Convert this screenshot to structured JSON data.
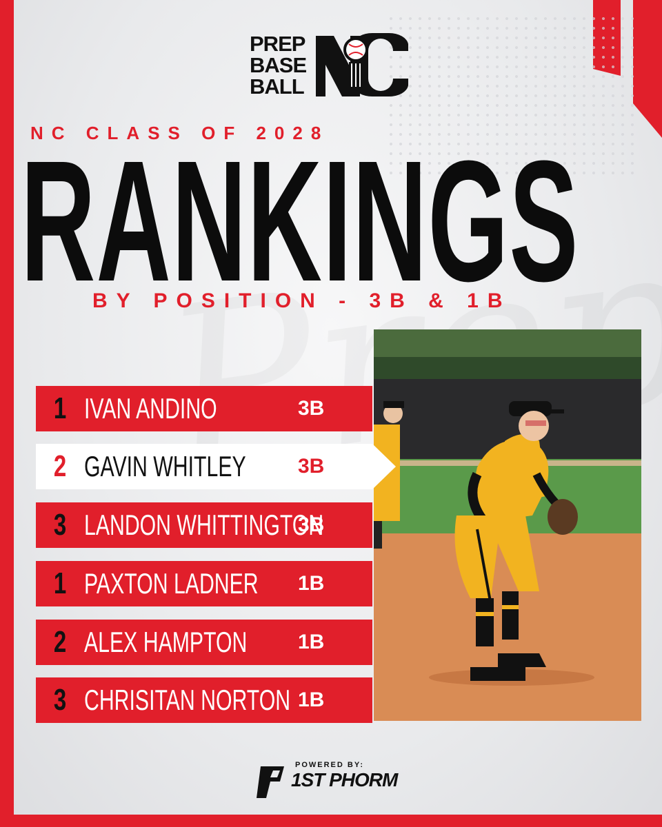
{
  "logo": {
    "words": [
      "PREP",
      "BASE",
      "BALL"
    ],
    "state": "NC"
  },
  "header": {
    "subtitle_top": "NC CLASS OF 2028",
    "title": "RANKINGS",
    "subtitle_bottom": "BY POSITION - 3B & 1B"
  },
  "rankings": [
    {
      "rank": "1",
      "name": "IVAN ANDINO",
      "position": "3B",
      "highlighted": false
    },
    {
      "rank": "2",
      "name": "GAVIN WHITLEY",
      "position": "3B",
      "highlighted": true
    },
    {
      "rank": "3",
      "name": "LANDON WHITTINGTON",
      "position": "3B",
      "highlighted": false
    },
    {
      "rank": "1",
      "name": "PAXTON LADNER",
      "position": "1B",
      "highlighted": false
    },
    {
      "rank": "2",
      "name": "ALEX HAMPTON",
      "position": "1B",
      "highlighted": false
    },
    {
      "rank": "3",
      "name": "CHRISITAN NORTON",
      "position": "1B",
      "highlighted": false
    }
  ],
  "sponsor": {
    "powered_by": "POWERED BY:",
    "brand": "1ST PHORM"
  },
  "colors": {
    "accent": "#e11f2b",
    "dark": "#0c0c0c",
    "uniform": "#f2b320"
  }
}
